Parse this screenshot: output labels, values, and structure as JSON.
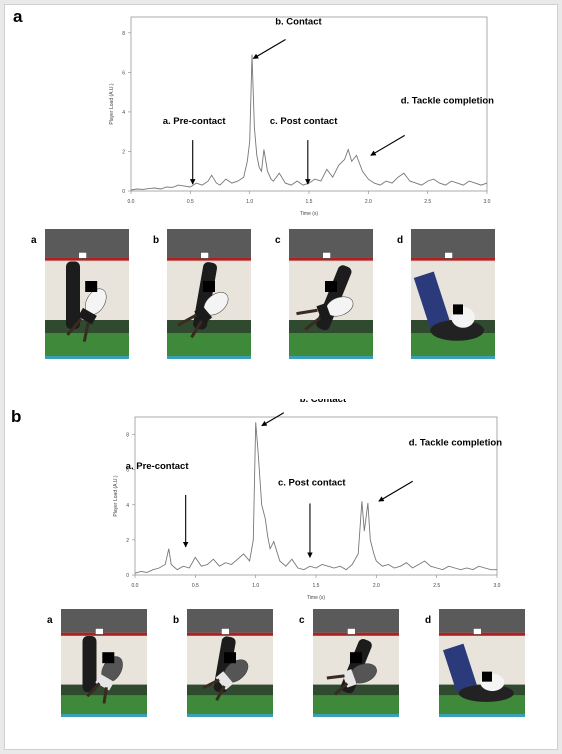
{
  "panels": [
    {
      "label": "a",
      "chart_data": {
        "type": "line",
        "title": "",
        "xlabel": "Time (s)",
        "ylabel": "Player Load (A.U.)",
        "xlim": [
          0.0,
          3.0
        ],
        "ylim": [
          0,
          8.8
        ],
        "x_ticks": [
          "0.0",
          "0.5",
          "1.0",
          "1.5",
          "2.0",
          "2.5",
          "3.0"
        ],
        "y_ticks": [
          "0",
          "2",
          "4",
          "6",
          "8"
        ],
        "grid": false,
        "annotations": [
          {
            "text": "a. Pre-contact",
            "x": 0.52,
            "y": 0.35
          },
          {
            "text": "b. Contact",
            "x": 1.03,
            "y": 6.7
          },
          {
            "text": "c. Post contact",
            "x": 1.49,
            "y": 0.35
          },
          {
            "text": "d. Tackle completion",
            "x": 2.02,
            "y": 1.8
          }
        ],
        "series": [
          {
            "x": [
              0.0,
              0.05,
              0.1,
              0.15,
              0.2,
              0.25,
              0.3,
              0.35,
              0.4,
              0.45,
              0.5,
              0.55,
              0.6,
              0.65,
              0.68,
              0.72,
              0.75,
              0.8,
              0.85,
              0.9,
              0.95,
              0.98,
              1.0,
              1.02,
              1.04,
              1.06,
              1.08,
              1.1,
              1.12,
              1.15,
              1.18,
              1.2,
              1.25,
              1.3,
              1.35,
              1.4,
              1.45,
              1.5,
              1.55,
              1.6,
              1.65,
              1.7,
              1.75,
              1.8,
              1.83,
              1.86,
              1.9,
              1.95,
              2.0,
              2.05,
              2.1,
              2.15,
              2.2,
              2.25,
              2.3,
              2.35,
              2.4,
              2.45,
              2.5,
              2.55,
              2.6,
              2.65,
              2.7,
              2.75,
              2.8,
              2.85,
              2.9,
              2.95,
              3.0
            ],
            "y": [
              0.05,
              0.1,
              0.08,
              0.12,
              0.15,
              0.1,
              0.2,
              0.18,
              0.3,
              0.25,
              0.2,
              0.4,
              0.3,
              0.5,
              0.8,
              0.4,
              0.3,
              0.6,
              0.4,
              0.5,
              0.7,
              1.5,
              2.5,
              6.9,
              3.2,
              1.8,
              1.2,
              1.0,
              2.1,
              1.0,
              0.6,
              0.5,
              0.9,
              0.4,
              0.3,
              0.5,
              0.3,
              0.4,
              0.6,
              0.5,
              1.1,
              0.7,
              1.3,
              1.6,
              2.1,
              1.5,
              1.8,
              1.0,
              0.6,
              0.4,
              0.3,
              0.5,
              0.4,
              0.7,
              0.9,
              0.5,
              0.4,
              0.3,
              0.5,
              0.6,
              0.4,
              0.3,
              0.5,
              0.4,
              0.3,
              0.5,
              0.4,
              0.3,
              0.4
            ]
          }
        ]
      },
      "photos": [
        {
          "label": "a",
          "scene": "pre-contact"
        },
        {
          "label": "b",
          "scene": "contact"
        },
        {
          "label": "c",
          "scene": "post-contact"
        },
        {
          "label": "d",
          "scene": "tackle-completion"
        }
      ]
    },
    {
      "label": "b",
      "chart_data": {
        "type": "line",
        "title": "",
        "xlabel": "Time (s)",
        "ylabel": "Player Load (A.U.)",
        "xlim": [
          0.0,
          3.0
        ],
        "ylim": [
          0,
          9.0
        ],
        "x_ticks": [
          "0.0",
          "0.5",
          "1.0",
          "1.5",
          "2.0",
          "2.5",
          "3.0"
        ],
        "y_ticks": [
          "0",
          "2",
          "4",
          "6",
          "8"
        ],
        "grid": false,
        "annotations": [
          {
            "text": "a. Pre-contact",
            "x": 0.42,
            "y": 1.6
          },
          {
            "text": "b. Contact",
            "x": 1.05,
            "y": 8.5
          },
          {
            "text": "c. Post contact",
            "x": 1.45,
            "y": 1.0
          },
          {
            "text": "d. Tackle completion",
            "x": 2.02,
            "y": 4.2
          }
        ],
        "series": [
          {
            "x": [
              0.0,
              0.05,
              0.1,
              0.15,
              0.2,
              0.25,
              0.28,
              0.3,
              0.35,
              0.4,
              0.45,
              0.5,
              0.55,
              0.6,
              0.65,
              0.7,
              0.75,
              0.8,
              0.85,
              0.9,
              0.95,
              0.98,
              1.0,
              1.02,
              1.05,
              1.08,
              1.1,
              1.12,
              1.15,
              1.2,
              1.25,
              1.3,
              1.35,
              1.4,
              1.45,
              1.5,
              1.55,
              1.6,
              1.65,
              1.7,
              1.75,
              1.8,
              1.85,
              1.88,
              1.9,
              1.93,
              1.95,
              1.98,
              2.0,
              2.05,
              2.1,
              2.15,
              2.2,
              2.25,
              2.3,
              2.35,
              2.4,
              2.45,
              2.5,
              2.55,
              2.6,
              2.65,
              2.7,
              2.75,
              2.8,
              2.85,
              2.9,
              2.95,
              3.0
            ],
            "y": [
              0.1,
              0.2,
              0.15,
              0.3,
              0.4,
              0.6,
              1.5,
              0.6,
              0.3,
              0.5,
              0.4,
              1.0,
              0.5,
              0.6,
              0.9,
              0.5,
              0.7,
              0.6,
              0.9,
              1.2,
              0.8,
              2.0,
              8.7,
              7.0,
              4.0,
              3.2,
              2.2,
              1.5,
              1.9,
              0.8,
              0.5,
              0.9,
              0.4,
              0.3,
              0.5,
              0.4,
              0.6,
              0.5,
              0.4,
              0.5,
              0.3,
              0.6,
              1.2,
              4.2,
              2.5,
              4.1,
              2.0,
              1.2,
              0.8,
              0.5,
              0.6,
              0.4,
              0.5,
              0.7,
              0.4,
              0.6,
              0.8,
              0.5,
              0.4,
              0.3,
              0.5,
              0.4,
              0.3,
              0.4,
              0.3,
              0.5,
              0.4,
              0.3,
              0.3
            ]
          }
        ]
      },
      "photos": [
        {
          "label": "a",
          "scene": "pre-contact"
        },
        {
          "label": "b",
          "scene": "contact"
        },
        {
          "label": "c",
          "scene": "post-contact"
        },
        {
          "label": "d",
          "scene": "tackle-completion"
        }
      ]
    }
  ],
  "colors": {
    "line": "#777777",
    "axis": "#888888",
    "annotation": "#000000",
    "floor_green": "#3f8a3a",
    "wall": "#e8e4dc",
    "shorts": "#1a1a1a",
    "shirt": "#f4f4f4"
  }
}
